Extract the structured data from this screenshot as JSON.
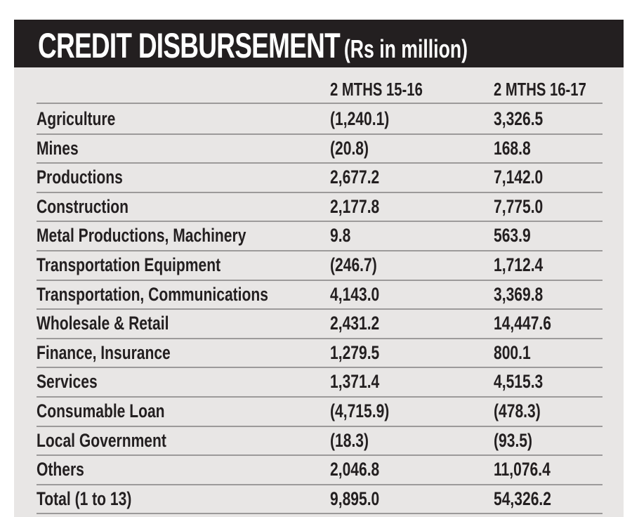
{
  "title": "CREDIT DISBURSEMENT",
  "unit": "(Rs in million)",
  "colors": {
    "banner": "#231f20",
    "panel": "#e8e6e5",
    "text": "#231f20",
    "rule": "#9c9a9a"
  },
  "columns": [
    "",
    "2 MTHS 15-16",
    "2 MTHS 16-17"
  ],
  "rows": [
    [
      "Agriculture",
      "(1,240.1)",
      "3,326.5"
    ],
    [
      "Mines",
      "(20.8)",
      "168.8"
    ],
    [
      "Productions",
      "2,677.2",
      "7,142.0"
    ],
    [
      "Construction",
      "2,177.8",
      "7,775.0"
    ],
    [
      "Metal Productions, Machinery",
      "9.8",
      "563.9"
    ],
    [
      "Transportation Equipment",
      "(246.7)",
      "1,712.4"
    ],
    [
      "Transportation, Communications",
      "4,143.0",
      "3,369.8"
    ],
    [
      "Wholesale & Retail",
      "2,431.2",
      "14,447.6"
    ],
    [
      "Finance, Insurance",
      "1,279.5",
      "800.1"
    ],
    [
      "Services",
      "1,371.4",
      "4,515.3"
    ],
    [
      "Consumable Loan",
      "(4,715.9)",
      "(478.3)"
    ],
    [
      "Local Government",
      "(18.3)",
      "(93.5)"
    ],
    [
      "Others",
      "2,046.8",
      "11,076.4"
    ],
    [
      "Total (1 to 13)",
      "9,895.0",
      "54,326.2"
    ]
  ],
  "chart_data": {
    "type": "table",
    "title": "CREDIT DISBURSEMENT (Rs in million)",
    "categories": [
      "Agriculture",
      "Mines",
      "Productions",
      "Construction",
      "Metal Productions, Machinery",
      "Transportation Equipment",
      "Transportation, Communications",
      "Wholesale & Retail",
      "Finance, Insurance",
      "Services",
      "Consumable Loan",
      "Local Government",
      "Others",
      "Total (1 to 13)"
    ],
    "series": [
      {
        "name": "2 MTHS 15-16",
        "values": [
          -1240.1,
          -20.8,
          2677.2,
          2177.8,
          9.8,
          -246.7,
          4143.0,
          2431.2,
          1279.5,
          1371.4,
          -4715.9,
          -18.3,
          2046.8,
          9895.0
        ]
      },
      {
        "name": "2 MTHS 16-17",
        "values": [
          3326.5,
          168.8,
          7142.0,
          7775.0,
          563.9,
          1712.4,
          3369.8,
          14447.6,
          800.1,
          4515.3,
          -478.3,
          -93.5,
          11076.4,
          54326.2
        ]
      }
    ]
  }
}
